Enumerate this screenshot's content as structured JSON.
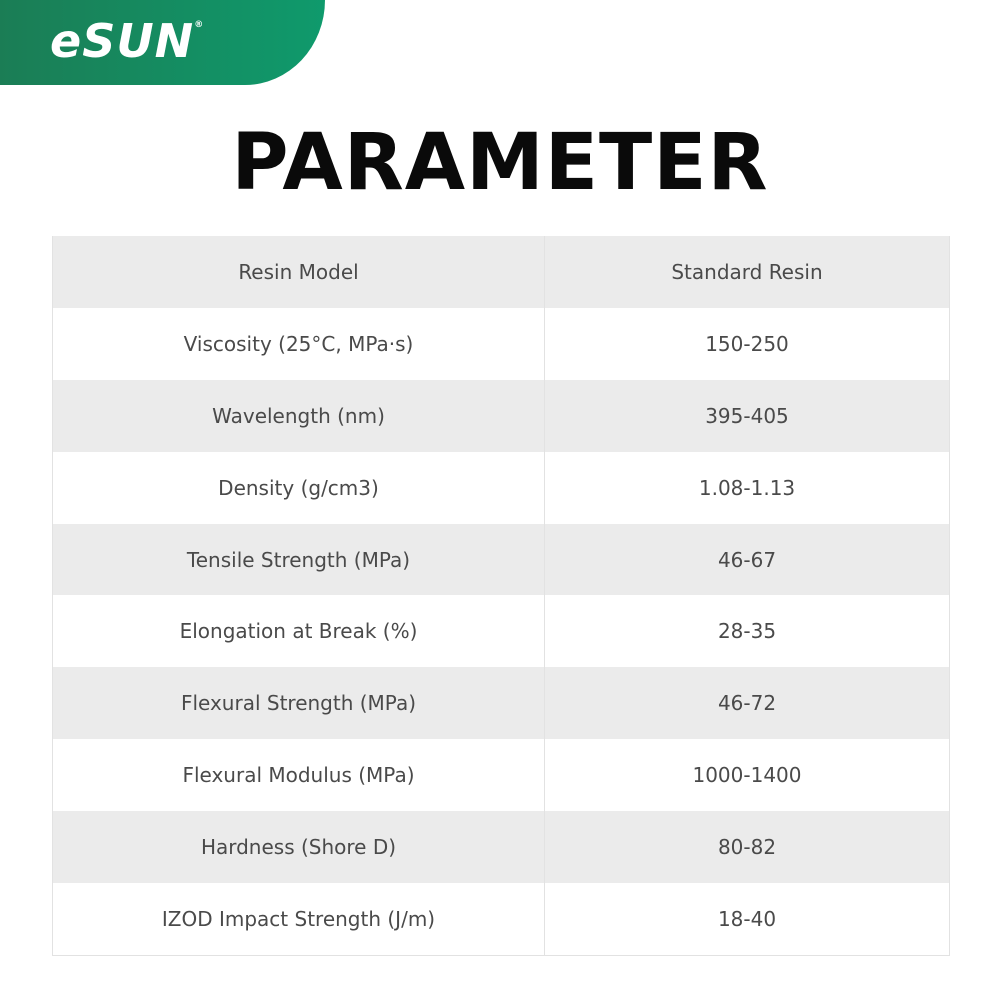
{
  "brand": {
    "logo_text": "eSUN",
    "registered_mark": "®",
    "color": "#12905f"
  },
  "title": "PARAMETER",
  "table": {
    "rows": [
      {
        "label": "Resin Model",
        "value": "Standard Resin"
      },
      {
        "label": "Viscosity (25°C, MPa·s)",
        "value": "150-250"
      },
      {
        "label": "Wavelength (nm)",
        "value": "395-405"
      },
      {
        "label": "Density (g/cm3)",
        "value": "1.08-1.13"
      },
      {
        "label": "Tensile Strength (MPa)",
        "value": "46-67"
      },
      {
        "label": "Elongation at Break (%)",
        "value": "28-35"
      },
      {
        "label": "Flexural Strength (MPa)",
        "value": "46-72"
      },
      {
        "label": "Flexural Modulus (MPa)",
        "value": "1000-1400"
      },
      {
        "label": "Hardness (Shore D)",
        "value": "80-82"
      },
      {
        "label": "IZOD Impact Strength (J/m)",
        "value": "18-40"
      }
    ]
  }
}
